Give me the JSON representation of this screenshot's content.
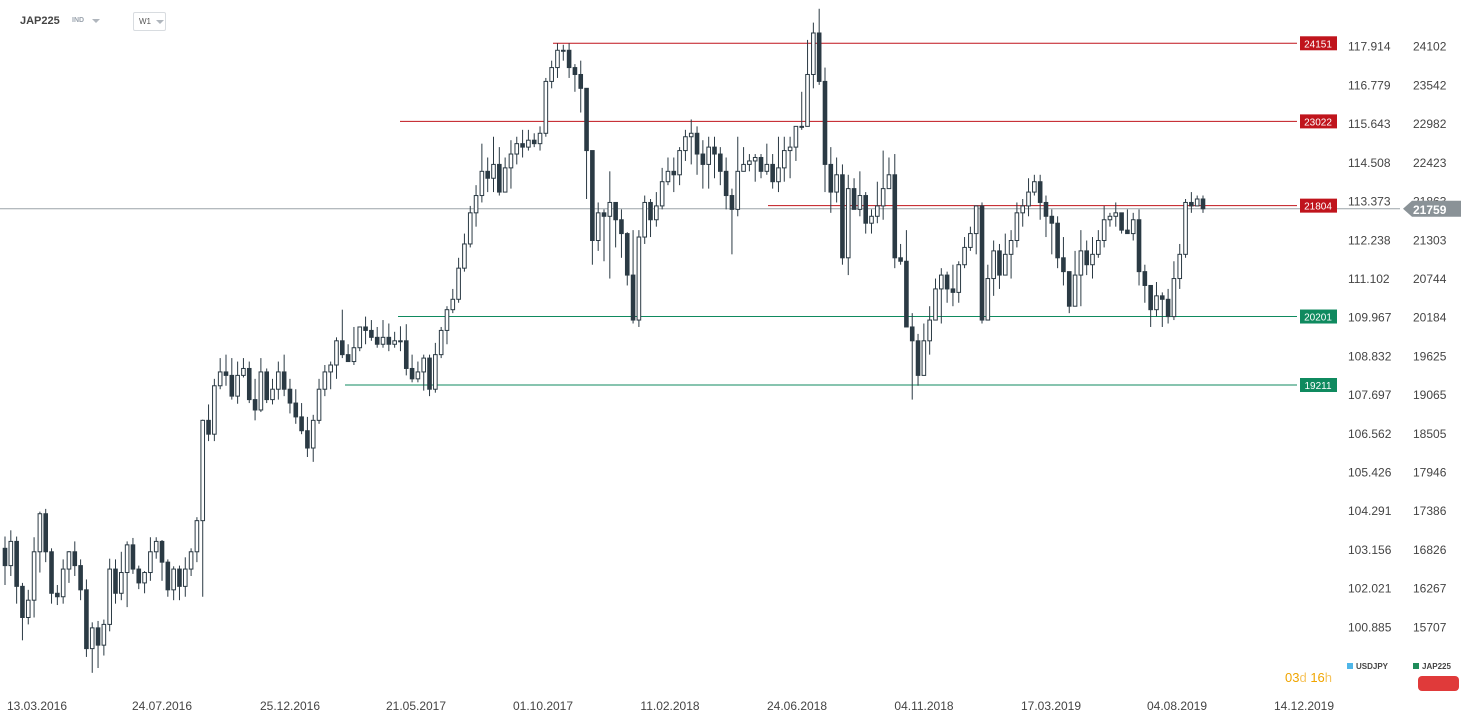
{
  "toolbar": {
    "symbol": "JAP225",
    "symbol_type": "IND",
    "interval": "W1"
  },
  "timer": {
    "days": "03",
    "days_unit": "d",
    "hours": "16",
    "hours_unit": "h"
  },
  "legend": [
    {
      "label": "USDJPY",
      "color": "#4fb6e8"
    },
    {
      "label": "JAP225",
      "color": "#1e8c5a"
    }
  ],
  "colors": {
    "bull": "#ffffff",
    "bear": "#2b3a44",
    "resistance": "#c0141c",
    "support": "#0f8a5f",
    "price_tag": "#8a9297"
  },
  "chart_data": {
    "type": "candlestick",
    "interval": "W1",
    "x_tick_labels": [
      "13.03.2016",
      "24.07.2016",
      "25.12.2016",
      "21.05.2017",
      "01.10.2017",
      "11.02.2018",
      "24.06.2018",
      "04.11.2018",
      "17.03.2019",
      "04.08.2019",
      "14.12.2019"
    ],
    "y_left_ticks": [
      "117.914",
      "116.779",
      "115.643",
      "114.508",
      "113.373",
      "112.238",
      "111.102",
      "109.967",
      "108.832",
      "107.697",
      "106.562",
      "105.426",
      "104.291",
      "103.156",
      "102.021",
      "100.885"
    ],
    "y_right_ticks": [
      "24102",
      "23542",
      "22982",
      "22423",
      "21863",
      "21303",
      "20744",
      "20184",
      "19625",
      "19065",
      "18505",
      "17946",
      "17386",
      "16826",
      "16267",
      "15707"
    ],
    "y_range": [
      15380,
      24560
    ],
    "current_price": 21759,
    "levels": [
      {
        "label": "24151",
        "value": 24151,
        "kind": "resistance"
      },
      {
        "label": "23022",
        "value": 23022,
        "kind": "resistance"
      },
      {
        "label": "21804",
        "value": 21804,
        "kind": "resistance"
      },
      {
        "label": "20201",
        "value": 20201,
        "kind": "support"
      },
      {
        "label": "19211",
        "value": 19211,
        "kind": "support"
      }
    ],
    "candles": [
      [
        16850,
        16600,
        17020,
        16320
      ],
      [
        16600,
        16950,
        17110,
        16450
      ],
      [
        16950,
        16300,
        17020,
        16050
      ],
      [
        16300,
        15850,
        16350,
        15520
      ],
      [
        15850,
        16100,
        16250,
        15750
      ],
      [
        16100,
        16800,
        17010,
        15850
      ],
      [
        16800,
        17350,
        17380,
        16500
      ],
      [
        17350,
        16800,
        17420,
        16650
      ],
      [
        16800,
        16200,
        16850,
        16050
      ],
      [
        16200,
        16150,
        16320,
        16030
      ],
      [
        16150,
        16550,
        16690,
        16050
      ],
      [
        16550,
        16800,
        16810,
        16350
      ],
      [
        16800,
        16600,
        16950,
        16450
      ],
      [
        16600,
        16250,
        16690,
        16100
      ],
      [
        16250,
        15400,
        16400,
        15280
      ],
      [
        15400,
        15700,
        15780,
        15050
      ],
      [
        15700,
        15450,
        15800,
        15120
      ],
      [
        15450,
        15750,
        15820,
        15300
      ],
      [
        15750,
        16550,
        16700,
        15650
      ],
      [
        16550,
        16200,
        16690,
        16050
      ],
      [
        16200,
        16500,
        16800,
        16100
      ],
      [
        16500,
        16900,
        16950,
        16000
      ],
      [
        16900,
        16550,
        17000,
        16480
      ],
      [
        16550,
        16350,
        16600,
        16260
      ],
      [
        16350,
        16500,
        16520,
        16200
      ],
      [
        16500,
        16800,
        17010,
        16380
      ],
      [
        16800,
        16950,
        17010,
        16700
      ],
      [
        16950,
        16650,
        16970,
        16380
      ],
      [
        16650,
        16250,
        16690,
        16150
      ],
      [
        16250,
        16550,
        16590,
        16100
      ],
      [
        16550,
        16300,
        16600,
        16100
      ],
      [
        16300,
        16550,
        16720,
        16150
      ],
      [
        16550,
        16800,
        16850,
        16450
      ],
      [
        16800,
        17250,
        17300,
        16650
      ],
      [
        17250,
        18700,
        18710,
        16150
      ],
      [
        18700,
        18500,
        18930,
        18400
      ],
      [
        18500,
        19200,
        19300,
        18400
      ],
      [
        19200,
        19400,
        19600,
        19150
      ],
      [
        19400,
        19350,
        19650,
        19200
      ],
      [
        19350,
        19050,
        19600,
        19000
      ],
      [
        19050,
        19350,
        19550,
        18940
      ],
      [
        19350,
        19450,
        19600,
        19320
      ],
      [
        19450,
        19000,
        19550,
        18950
      ],
      [
        19000,
        18850,
        19300,
        18700
      ],
      [
        18850,
        19400,
        19600,
        18820
      ],
      [
        19400,
        19000,
        19450,
        18950
      ],
      [
        19000,
        19150,
        19300,
        18930
      ],
      [
        19150,
        19400,
        19550,
        19000
      ],
      [
        19400,
        19150,
        19650,
        19050
      ],
      [
        19150,
        18950,
        19300,
        18800
      ],
      [
        18950,
        18750,
        19150,
        18650
      ],
      [
        18750,
        18550,
        18950,
        18500
      ],
      [
        18550,
        18300,
        18750,
        18170
      ],
      [
        18300,
        18700,
        18780,
        18100
      ],
      [
        18700,
        19150,
        19300,
        18650
      ],
      [
        19150,
        19400,
        19500,
        19050
      ],
      [
        19400,
        19500,
        19550,
        19150
      ],
      [
        19500,
        19850,
        19900,
        19300
      ],
      [
        19850,
        19650,
        20300,
        19600
      ],
      [
        19650,
        19550,
        19800,
        19550
      ],
      [
        19550,
        19750,
        20050,
        19500
      ],
      [
        19750,
        20050,
        20050,
        19700
      ],
      [
        20050,
        20000,
        20200,
        19800
      ],
      [
        20000,
        19900,
        20150,
        19850
      ],
      [
        19900,
        19800,
        20050,
        19750
      ],
      [
        19800,
        19900,
        20150,
        19750
      ],
      [
        19900,
        19800,
        20100,
        19700
      ],
      [
        19800,
        19850,
        19980,
        19750
      ],
      [
        19850,
        19850,
        20060,
        19700
      ],
      [
        19850,
        19450,
        20090,
        19350
      ],
      [
        19450,
        19300,
        19650,
        19250
      ],
      [
        19300,
        19400,
        19550,
        19250
      ],
      [
        19400,
        19600,
        19650,
        19130
      ],
      [
        19600,
        19150,
        19650,
        19050
      ],
      [
        19150,
        19650,
        19820,
        19100
      ],
      [
        19650,
        20000,
        20050,
        19600
      ],
      [
        20000,
        20300,
        20350,
        19800
      ],
      [
        20300,
        20450,
        20600,
        20250
      ],
      [
        20450,
        20900,
        21050,
        20400
      ],
      [
        20900,
        21250,
        21400,
        20850
      ],
      [
        21250,
        21700,
        21800,
        21200
      ],
      [
        21700,
        21950,
        22100,
        21500
      ],
      [
        21950,
        22300,
        22700,
        21850
      ],
      [
        22300,
        22200,
        22500,
        22000
      ],
      [
        22200,
        22400,
        22800,
        22000
      ],
      [
        22400,
        22000,
        22650,
        21950
      ],
      [
        22000,
        22350,
        22500,
        22150
      ],
      [
        22350,
        22550,
        22750,
        22050
      ],
      [
        22550,
        22700,
        22800,
        22400
      ],
      [
        22700,
        22650,
        22900,
        22500
      ],
      [
        22650,
        22750,
        22900,
        22600
      ],
      [
        22750,
        22700,
        22850,
        22650
      ],
      [
        22700,
        22850,
        22950,
        22600
      ],
      [
        22850,
        23600,
        23650,
        22800
      ],
      [
        23600,
        23800,
        23900,
        23500
      ],
      [
        23800,
        24050,
        24150,
        23650
      ],
      [
        24050,
        24050,
        24130,
        23900
      ],
      [
        24050,
        23800,
        24150,
        23650
      ],
      [
        23800,
        23700,
        23850,
        23450
      ],
      [
        23700,
        23500,
        23900,
        23150
      ],
      [
        23500,
        22600,
        22650,
        21900
      ],
      [
        22600,
        21300,
        21350,
        20950
      ],
      [
        21300,
        21700,
        21850,
        21150
      ],
      [
        21700,
        21650,
        21750,
        21000
      ],
      [
        21650,
        21850,
        22300,
        20750
      ],
      [
        21850,
        21600,
        21850,
        21200
      ],
      [
        21600,
        21400,
        21750,
        21050
      ],
      [
        21400,
        20800,
        21420,
        20650
      ],
      [
        20800,
        20150,
        21450,
        20100
      ],
      [
        20150,
        21350,
        21450,
        20050
      ],
      [
        21350,
        21850,
        21950,
        21250
      ],
      [
        21850,
        21600,
        21900,
        21350
      ],
      [
        21600,
        21800,
        22000,
        21500
      ],
      [
        21800,
        22150,
        22350,
        21750
      ],
      [
        22150,
        22300,
        22500,
        22100
      ],
      [
        22300,
        22250,
        22500,
        22000
      ],
      [
        22250,
        22600,
        22650,
        22100
      ],
      [
        22600,
        22800,
        22900,
        22450
      ],
      [
        22800,
        22850,
        23050,
        22400
      ],
      [
        22850,
        22550,
        22950,
        22250
      ],
      [
        22550,
        22400,
        22750,
        22050
      ],
      [
        22400,
        22650,
        22800,
        22050
      ],
      [
        22650,
        22550,
        22800,
        22200
      ],
      [
        22550,
        22300,
        22650,
        22100
      ],
      [
        22300,
        21950,
        22500,
        21750
      ],
      [
        21950,
        21750,
        22050,
        21100
      ],
      [
        21750,
        22300,
        22800,
        21650
      ],
      [
        22300,
        22400,
        22650,
        22300
      ],
      [
        22400,
        22450,
        22550,
        22300
      ],
      [
        22450,
        22500,
        22550,
        22150
      ],
      [
        22500,
        22300,
        22550,
        22200
      ],
      [
        22300,
        22400,
        22700,
        22250
      ],
      [
        22400,
        22150,
        22550,
        22050
      ],
      [
        22150,
        22350,
        22800,
        22000
      ],
      [
        22350,
        22600,
        22800,
        22150
      ],
      [
        22600,
        22650,
        22800,
        22200
      ],
      [
        22650,
        22950,
        22950,
        22450
      ],
      [
        22950,
        22950,
        23450,
        22900
      ],
      [
        22950,
        23700,
        24200,
        23400
      ],
      [
        23700,
        24300,
        24450,
        23500
      ],
      [
        24300,
        23600,
        24650,
        23550
      ],
      [
        23600,
        22400,
        23800,
        22000
      ],
      [
        22400,
        22000,
        22650,
        21700
      ],
      [
        22000,
        22250,
        22500,
        21850
      ],
      [
        22250,
        21050,
        22400,
        20950
      ],
      [
        21050,
        22050,
        22250,
        20800
      ],
      [
        22050,
        21750,
        22200,
        21750
      ],
      [
        21750,
        21950,
        22300,
        21650
      ],
      [
        21950,
        21550,
        22000,
        21400
      ],
      [
        21550,
        21650,
        21750,
        21400
      ],
      [
        21650,
        21800,
        22150,
        21550
      ],
      [
        21800,
        22050,
        22600,
        21600
      ],
      [
        22050,
        22250,
        22500,
        22050
      ],
      [
        22250,
        21050,
        22550,
        20900
      ],
      [
        21050,
        21000,
        21250,
        20950
      ],
      [
        21000,
        20050,
        21450,
        20050
      ],
      [
        20050,
        19850,
        20250,
        19000
      ],
      [
        19850,
        19350,
        19950,
        19200
      ],
      [
        19350,
        19850,
        20100,
        19350
      ],
      [
        19850,
        20150,
        20350,
        19650
      ],
      [
        20150,
        20600,
        20750,
        20150
      ],
      [
        20600,
        20800,
        20900,
        20100
      ],
      [
        20800,
        20600,
        20850,
        20400
      ],
      [
        20600,
        20550,
        20950,
        20350
      ],
      [
        20550,
        20950,
        21000,
        20400
      ],
      [
        20950,
        21200,
        21350,
        20900
      ],
      [
        21200,
        21400,
        21500,
        21150
      ],
      [
        21400,
        21800,
        21800,
        21100
      ],
      [
        21800,
        20150,
        21850,
        20100
      ],
      [
        20150,
        20750,
        20950,
        20400
      ],
      [
        20750,
        21150,
        21300,
        20500
      ],
      [
        21150,
        20800,
        21250,
        20600
      ],
      [
        20800,
        21100,
        21400,
        20850
      ],
      [
        21100,
        21300,
        21450,
        20750
      ],
      [
        21300,
        21700,
        21850,
        21200
      ],
      [
        21700,
        21800,
        21900,
        21500
      ],
      [
        21800,
        22000,
        22200,
        21650
      ],
      [
        22000,
        22150,
        22250,
        21950
      ],
      [
        22150,
        21850,
        22250,
        21600
      ],
      [
        21850,
        21650,
        21950,
        21350
      ],
      [
        21650,
        21550,
        21750,
        21100
      ],
      [
        21550,
        21050,
        21650,
        20900
      ],
      [
        21050,
        20850,
        21350,
        20650
      ],
      [
        20850,
        20350,
        20850,
        20250
      ],
      [
        20350,
        20800,
        21150,
        20350
      ],
      [
        20800,
        21150,
        21450,
        20350
      ],
      [
        21150,
        20950,
        21300,
        20800
      ],
      [
        20950,
        21100,
        21350,
        20750
      ],
      [
        21100,
        21300,
        21450,
        21050
      ],
      [
        21300,
        21600,
        21800,
        21200
      ],
      [
        21600,
        21650,
        21700,
        21500
      ],
      [
        21650,
        21700,
        21850,
        21500
      ],
      [
        21700,
        21450,
        21700,
        21400
      ],
      [
        21450,
        21400,
        21750,
        21400
      ],
      [
        21400,
        21600,
        21700,
        21300
      ],
      [
        21600,
        20850,
        21750,
        20650
      ],
      [
        20850,
        20650,
        20950,
        20400
      ],
      [
        20650,
        20300,
        20500,
        20050
      ],
      [
        20300,
        20500,
        20700,
        20200
      ],
      [
        20500,
        20450,
        20550,
        20050
      ],
      [
        20450,
        20200,
        20600,
        20100
      ],
      [
        20200,
        20750,
        21000,
        20150
      ],
      [
        20750,
        21100,
        21250,
        20600
      ],
      [
        21100,
        21850,
        21900,
        21050
      ],
      [
        21850,
        21800,
        22000,
        21700
      ],
      [
        21800,
        21900,
        21950,
        21800
      ],
      [
        21900,
        21759,
        21950,
        21700
      ]
    ]
  }
}
